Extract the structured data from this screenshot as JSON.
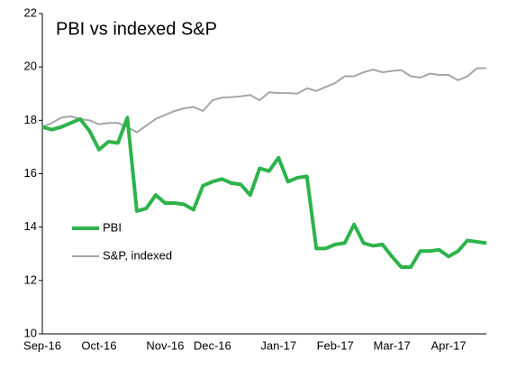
{
  "chart_data": {
    "type": "line",
    "title": "PBI vs indexed S&P",
    "categories": [
      "Sep-16",
      null,
      null,
      null,
      null,
      null,
      "Oct-16",
      null,
      null,
      null,
      null,
      null,
      null,
      "Nov-16",
      null,
      null,
      null,
      null,
      "Dec-16",
      null,
      null,
      null,
      null,
      null,
      null,
      "Jan-17",
      null,
      null,
      null,
      null,
      null,
      "Feb-17",
      null,
      null,
      null,
      null,
      null,
      "Mar-17",
      null,
      null,
      null,
      null,
      null,
      "Apr-17",
      null,
      null,
      null,
      null
    ],
    "series": [
      {
        "name": "S&P, indexed",
        "color": "#a6a6a6",
        "values": [
          17.75,
          17.9,
          18.1,
          18.15,
          18.05,
          18.0,
          17.85,
          17.9,
          17.9,
          17.75,
          17.55,
          17.8,
          18.05,
          18.2,
          18.35,
          18.45,
          18.5,
          18.35,
          18.75,
          18.85,
          18.87,
          18.9,
          18.95,
          18.75,
          19.05,
          19.02,
          19.02,
          19.0,
          19.2,
          19.1,
          19.25,
          19.4,
          19.65,
          19.65,
          19.8,
          19.9,
          19.8,
          19.85,
          19.88,
          19.65,
          19.6,
          19.75,
          19.7,
          19.7,
          19.5,
          19.65,
          19.95,
          19.95
        ]
      },
      {
        "name": "PBI",
        "color": "#2db34a",
        "values": [
          17.75,
          17.65,
          17.75,
          17.9,
          18.05,
          17.6,
          16.9,
          17.2,
          17.15,
          18.1,
          14.6,
          14.7,
          15.2,
          14.9,
          14.9,
          14.85,
          14.65,
          15.55,
          15.7,
          15.8,
          15.65,
          15.6,
          15.2,
          16.2,
          16.1,
          16.6,
          15.7,
          15.85,
          15.9,
          13.2,
          13.2,
          13.35,
          13.4,
          14.1,
          13.4,
          13.3,
          13.35,
          12.9,
          12.5,
          12.5,
          13.1,
          13.1,
          13.15,
          12.9,
          13.1,
          13.5,
          13.45,
          13.4
        ]
      }
    ],
    "ylim": [
      10,
      22
    ],
    "yticks": [
      10,
      12,
      14,
      16,
      18,
      20,
      22
    ],
    "grid": false
  }
}
